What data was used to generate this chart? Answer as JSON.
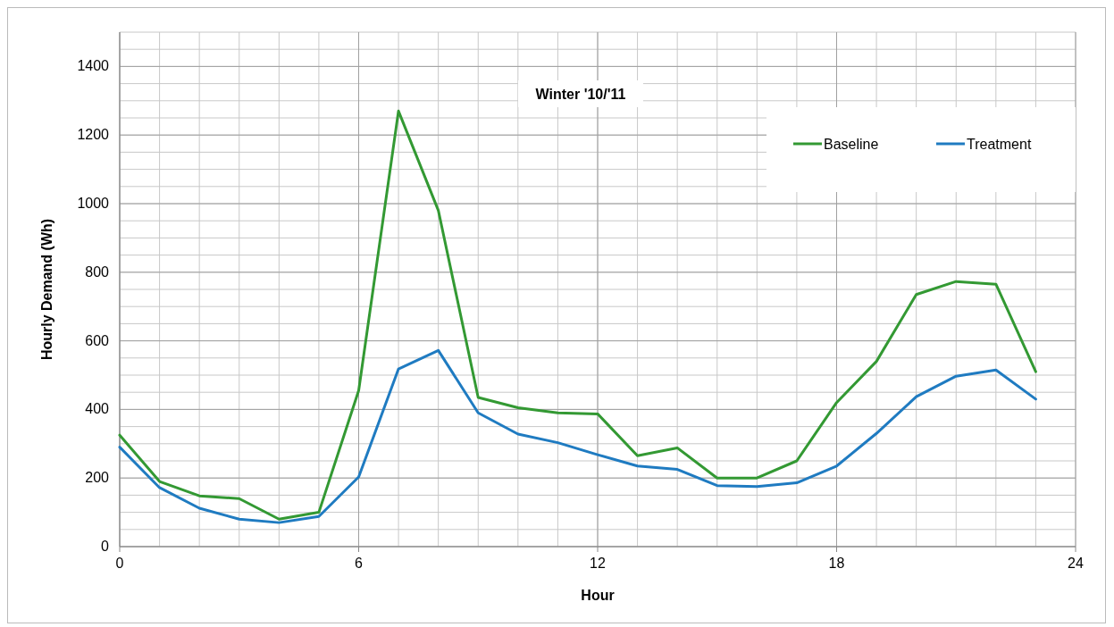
{
  "chart_data": {
    "type": "line",
    "title": "Winter '10/'11",
    "xlabel": "Hour",
    "ylabel": "Hourly Demand (Wh)",
    "x": [
      0,
      1,
      2,
      3,
      4,
      5,
      6,
      7,
      8,
      9,
      10,
      11,
      12,
      13,
      14,
      15,
      16,
      17,
      18,
      19,
      20,
      21,
      22,
      23
    ],
    "series": [
      {
        "name": "Baseline",
        "color": "#339933",
        "values": [
          325,
          190,
          148,
          140,
          80,
          100,
          455,
          1270,
          980,
          435,
          405,
          390,
          387,
          265,
          288,
          200,
          200,
          250,
          420,
          540,
          735,
          773,
          765,
          510
        ]
      },
      {
        "name": "Treatment",
        "color": "#1f7bc1",
        "values": [
          290,
          172,
          112,
          80,
          70,
          88,
          203,
          518,
          572,
          390,
          328,
          303,
          268,
          235,
          225,
          178,
          175,
          186,
          235,
          330,
          437,
          497,
          515,
          430
        ]
      }
    ],
    "xlim": [
      0,
      24
    ],
    "xticks": [
      0,
      6,
      12,
      18,
      24
    ],
    "ylim": [
      0,
      1500
    ],
    "yticks": [
      0,
      200,
      400,
      600,
      800,
      1000,
      1200,
      1400
    ],
    "grid": true,
    "legend": "top right",
    "marker": "none",
    "line_style": "solid"
  }
}
